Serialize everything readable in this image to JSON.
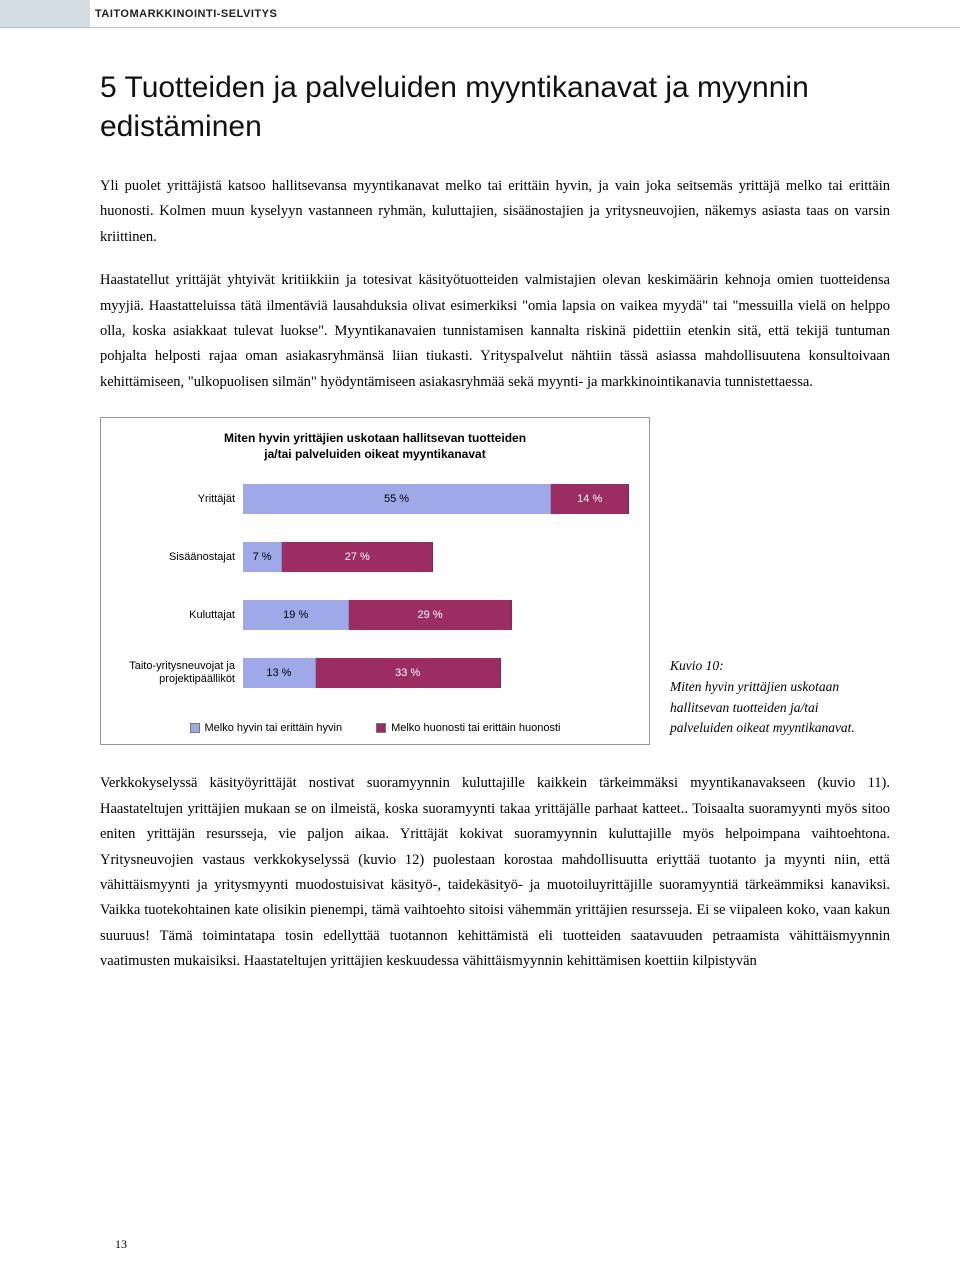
{
  "header": {
    "title": "TAITOMARKKINOINTI-SELVITYS"
  },
  "heading": "5  Tuotteiden ja palveluiden myyntikanavat ja myynnin edistäminen",
  "para1": "Yli puolet yrittäjistä katsoo hallitsevansa myyntikanavat melko tai erittäin hyvin, ja vain joka seitsemäs yrittäjä melko tai erittäin huonosti. Kolmen muun kyselyyn vastanneen ryhmän, kuluttajien, sisäänostajien ja yritysneuvojien, näkemys asiasta taas on varsin kriittinen.",
  "para2": "Haastatellut yrittäjät yhtyivät kritiikkiin ja totesivat käsityötuotteiden valmistajien olevan keskimäärin kehnoja omien tuotteidensa myyjiä. Haastatteluissa tätä ilmentäviä lausahduksia olivat esimerkiksi \"omia lapsia on vaikea myydä\" tai \"messuilla vielä on helppo olla, koska asiakkaat tulevat luokse\". Myyntikanavaien tunnistamisen kannalta riskinä pidettiin etenkin sitä, että tekijä tuntuman pohjalta helposti rajaa oman asiakasryhmänsä liian tiukasti. Yrityspalvelut nähtiin tässä asiassa mahdollisuutena konsultoivaan kehittämiseen, \"ulkopuolisen silmän\" hyödyntämiseen asiakasryhmää sekä myynti- ja markkinointikanavia tunnistettaessa.",
  "chart": {
    "type": "bar",
    "title_l1": "Miten hyvin yrittäjien uskotaan hallitsevan tuotteiden",
    "title_l2": "ja/tai palveluiden oikeat myyntikanavat",
    "xmax": 70,
    "colors": {
      "good": "#9fa8e8",
      "bad": "#9c2d62"
    },
    "rows": [
      {
        "label": "Yrittäjät",
        "good": 55,
        "bad": 14,
        "good_txt": "55 %",
        "bad_txt": "14 %"
      },
      {
        "label": "Sisäänostajat",
        "good": 7,
        "bad": 27,
        "good_txt": "7 %",
        "bad_txt": "27 %"
      },
      {
        "label": "Kuluttajat",
        "good": 19,
        "bad": 29,
        "good_txt": "19 %",
        "bad_txt": "29 %"
      },
      {
        "label": "Taito-yritysneuvojat ja projektipäälliköt",
        "good": 13,
        "bad": 33,
        "good_txt": "13 %",
        "bad_txt": "33 %"
      }
    ],
    "legend": {
      "good": "Melko hyvin tai erittäin hyvin",
      "bad": "Melko huonosti tai erittäin huonosti"
    }
  },
  "caption": {
    "l1": "Kuvio 10:",
    "l2": "Miten hyvin yrittäjien uskotaan hallitsevan tuotteiden ja/tai palveluiden oikeat myyntikanavat."
  },
  "para3": "Verkkokyselyssä käsityöyrittäjät nostivat suoramyynnin kuluttajille kaikkein tärkeimmäksi myyntikanavakseen (kuvio 11). Haastateltujen yrittäjien mukaan se on ilmeistä, koska suoramyynti takaa yrittäjälle parhaat katteet.. Toisaalta suoramyynti myös sitoo eniten yrittäjän resursseja, vie paljon aikaa. Yrittäjät kokivat suoramyynnin kuluttajille myös helpoimpana vaihtoehtona. Yritysneuvojien vastaus verkkokyselyssä (kuvio 12) puolestaan korostaa mahdollisuutta eriyttää tuotanto ja myynti niin, että vähittäismyynti ja yritysmyynti muodostuisivat käsityö-, taidekäsityö- ja muotoiluyrittäjille suoramyyntiä tärkeämmiksi kanaviksi. Vaikka tuotekohtainen kate olisikin pienempi, tämä vaihtoehto sitoisi vähemmän yrittäjien resursseja. Ei se viipaleen koko, vaan kakun suuruus! Tämä toimintatapa tosin edellyttää tuotannon kehittämistä eli tuotteiden saatavuuden petraamista vähittäismyynnin vaatimusten mukaisiksi. Haastateltujen yrittäjien keskuudessa vähittäismyynnin kehittämisen koettiin kilpistyvän",
  "page": "13"
}
